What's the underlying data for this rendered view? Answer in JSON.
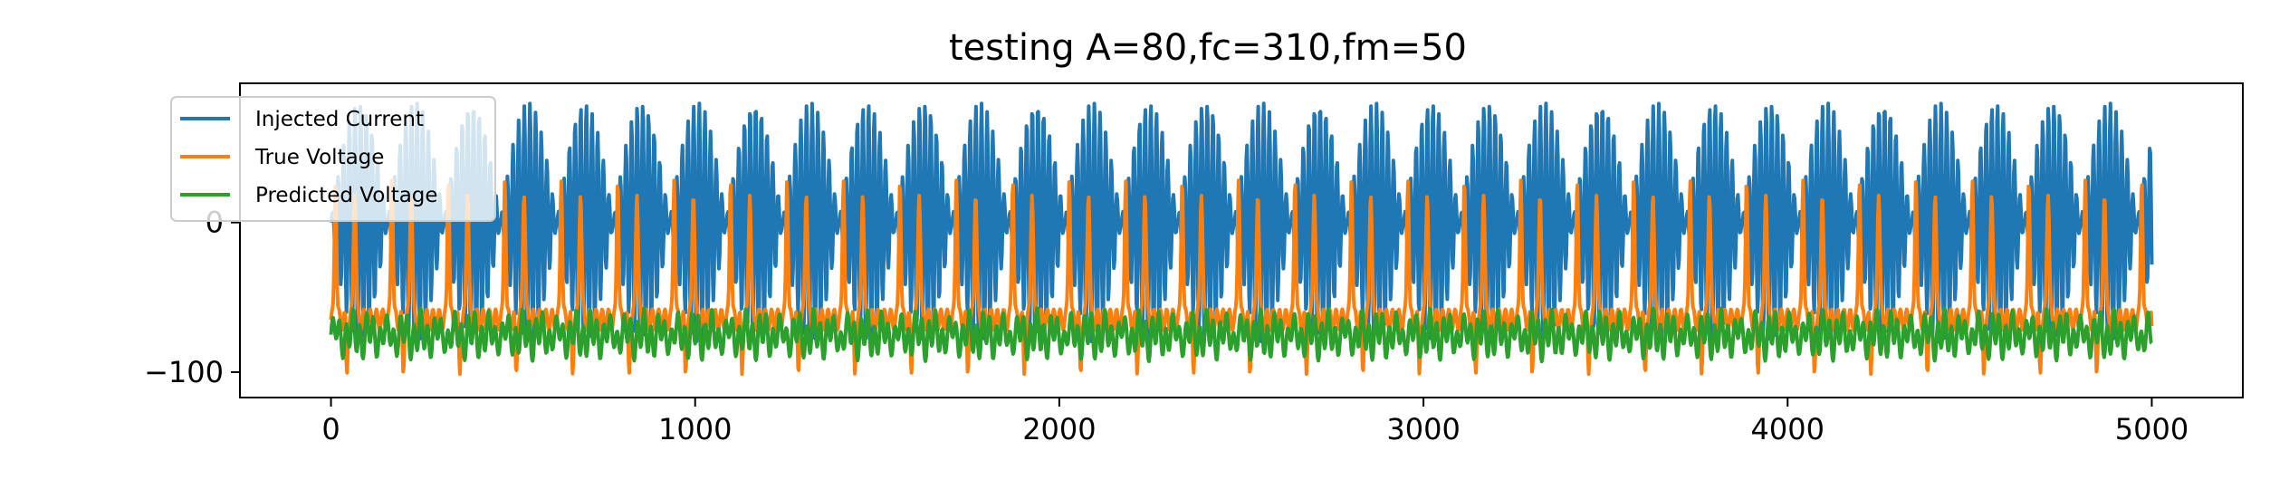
{
  "chart_data": {
    "type": "line",
    "title": "testing A=80,fc=310,fm=50",
    "xlabel": "",
    "ylabel": "",
    "xlim": [
      -250,
      5250
    ],
    "ylim": [
      -117,
      93
    ],
    "x_ticks": [
      0,
      1000,
      2000,
      3000,
      4000,
      5000
    ],
    "x_tick_labels": [
      "0",
      "1000",
      "2000",
      "3000",
      "4000",
      "5000"
    ],
    "y_ticks": [
      0,
      -100
    ],
    "y_tick_labels": [
      "0",
      "−100"
    ],
    "grid": false,
    "legend_position": "upper left",
    "x_range": [
      0,
      5000
    ],
    "series": [
      {
        "name": "Injected Current",
        "color": "#1f77b4",
        "shape": "AM sine: A=80, carrier period ≈15.5 samples, envelope period ≈155 samples",
        "values": [
          {
            "x": 0,
            "y": 0
          },
          {
            "x": 35,
            "y": -25
          },
          {
            "x": 77,
            "y": 70
          },
          {
            "x": 120,
            "y": 78
          },
          {
            "x": 160,
            "y": 0
          },
          {
            "x": 200,
            "y": -60
          },
          {
            "x": 245,
            "y": 75
          },
          {
            "x": 290,
            "y": 78
          },
          {
            "x": 330,
            "y": 0
          },
          {
            "x": 5000,
            "y": 0
          }
        ],
        "amplitude": 80
      },
      {
        "name": "True Voltage",
        "color": "#ff7f0e",
        "values": [
          {
            "x": 0,
            "y": -65
          },
          {
            "x": 55,
            "y": 35
          },
          {
            "x": 100,
            "y": -60
          },
          {
            "x": 210,
            "y": 37
          },
          {
            "x": 540,
            "y": -100
          },
          {
            "x": 1560,
            "y": -102
          },
          {
            "x": 4850,
            "y": -100
          },
          {
            "x": 5000,
            "y": -70
          }
        ],
        "range": [
          -102,
          38
        ]
      },
      {
        "name": "Predicted Voltage",
        "color": "#2ca02c",
        "values": [
          {
            "x": 0,
            "y": -72
          },
          {
            "x": 130,
            "y": -52
          },
          {
            "x": 160,
            "y": -98
          },
          {
            "x": 2500,
            "y": -75
          },
          {
            "x": 5000,
            "y": -72
          }
        ],
        "range": [
          -98,
          -50
        ]
      }
    ]
  }
}
